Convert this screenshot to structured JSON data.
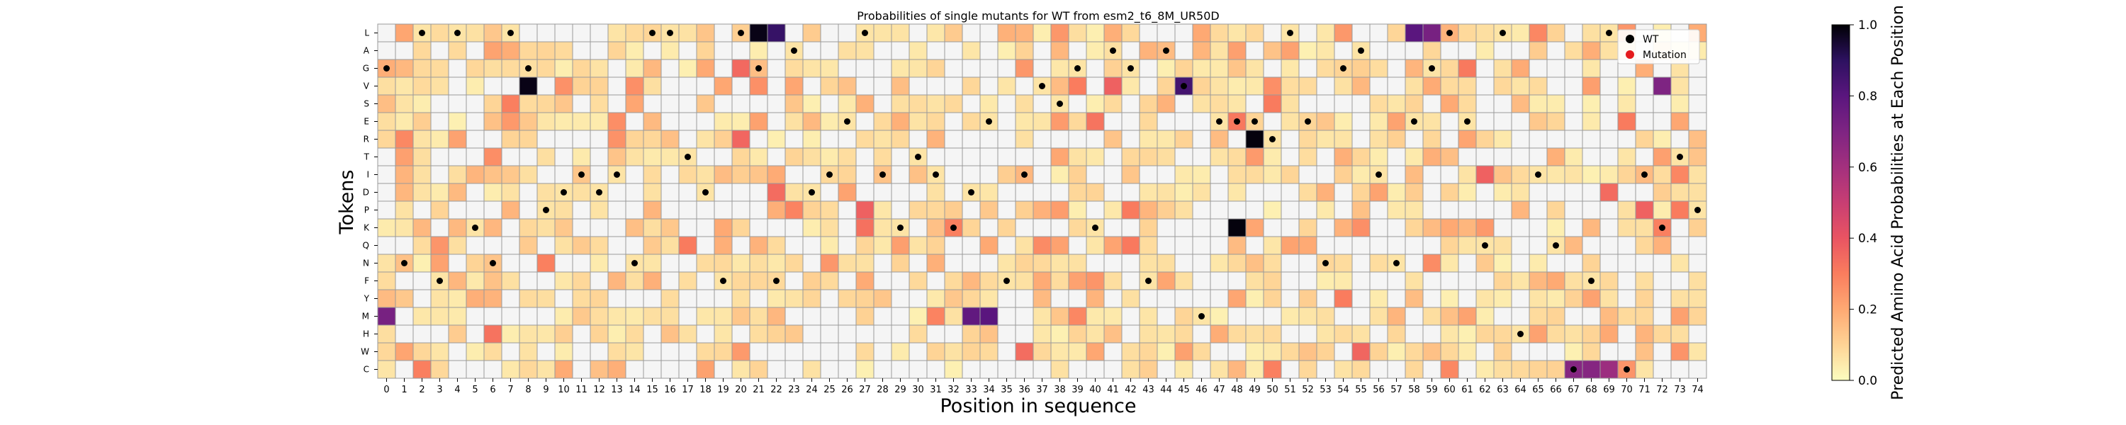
{
  "chart_data": {
    "type": "heatmap",
    "title": "Probabilities of single mutants for WT from esm2_t6_8M_UR50D",
    "xlabel": "Position in sequence",
    "ylabel": "Tokens",
    "tokens": [
      "L",
      "A",
      "G",
      "V",
      "S",
      "E",
      "R",
      "T",
      "I",
      "D",
      "P",
      "K",
      "Q",
      "N",
      "F",
      "Y",
      "M",
      "H",
      "W",
      "C"
    ],
    "positions": [
      0,
      1,
      2,
      3,
      4,
      5,
      6,
      7,
      8,
      9,
      10,
      11,
      12,
      13,
      14,
      15,
      16,
      17,
      18,
      19,
      20,
      21,
      22,
      23,
      24,
      25,
      26,
      27,
      28,
      29,
      30,
      31,
      32,
      33,
      34,
      35,
      36,
      37,
      38,
      39,
      40,
      41,
      42,
      43,
      44,
      45,
      46,
      47,
      48,
      49,
      50,
      51,
      52,
      53,
      54,
      55,
      56,
      57,
      58,
      59,
      60,
      61,
      62,
      63,
      64,
      65,
      66,
      67,
      68,
      69,
      70,
      71,
      72,
      73,
      74
    ],
    "wt_sequence": "GNLFLKNLGPDIDINLLTDFLGFADIELIKTIKDEFIVSGKAGFAVMEEERLENGAINEGLEQLHIQCFLCIKTP",
    "colorbar": {
      "label": "Predicted Amino Acid Probabilities at Each Position",
      "range": [
        0.0,
        1.0
      ],
      "ticks": [
        "0.0",
        "0.2",
        "0.4",
        "0.6",
        "0.8",
        "1.0"
      ],
      "colormap": "magma_r"
    },
    "legend": {
      "placement": "top-right",
      "entries": [
        {
          "label": "WT",
          "color": "#000000"
        },
        {
          "label": "Mutation",
          "color": "#e41a1c"
        }
      ]
    },
    "notable_cells": [
      {
        "token": "L",
        "position": 21,
        "value": 0.98
      },
      {
        "token": "L",
        "position": 22,
        "value": 0.88
      },
      {
        "token": "V",
        "position": 8,
        "value": 0.98
      },
      {
        "token": "R",
        "position": 49,
        "value": 0.99
      },
      {
        "token": "K",
        "position": 48,
        "value": 0.99
      },
      {
        "token": "M",
        "position": 0,
        "value": 0.72
      },
      {
        "token": "M",
        "position": 33,
        "value": 0.78
      },
      {
        "token": "M",
        "position": 34,
        "value": 0.8
      },
      {
        "token": "V",
        "position": 45,
        "value": 0.85
      },
      {
        "token": "V",
        "position": 72,
        "value": 0.7
      },
      {
        "token": "L",
        "position": 58,
        "value": 0.8
      },
      {
        "token": "L",
        "position": 59,
        "value": 0.72
      },
      {
        "token": "C",
        "position": 67,
        "value": 0.68
      },
      {
        "token": "C",
        "position": 68,
        "value": 0.68
      },
      {
        "token": "C",
        "position": 69,
        "value": 0.62
      }
    ]
  }
}
